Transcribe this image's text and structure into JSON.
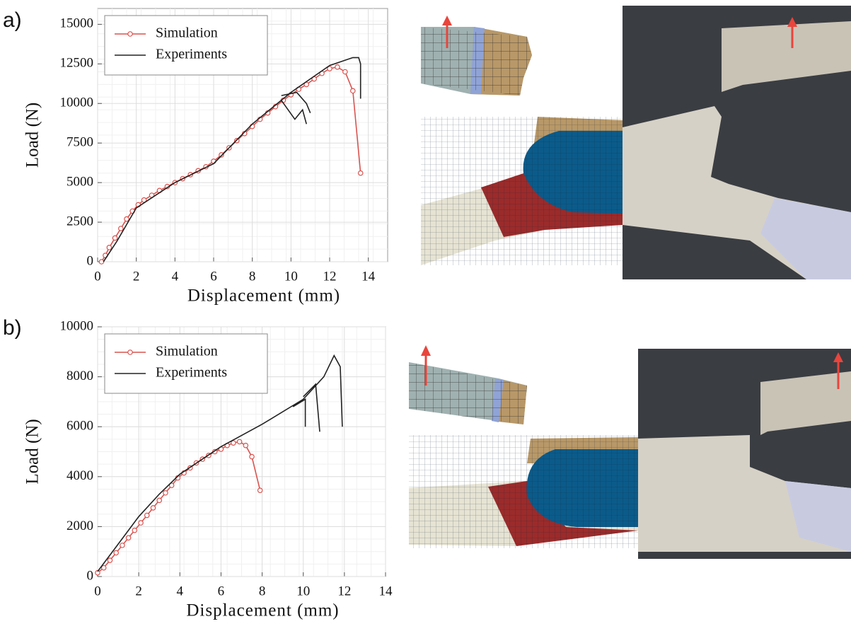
{
  "panel_labels": [
    "a)",
    "b)"
  ],
  "chart_data": [
    {
      "type": "line",
      "x_label": "Displacement (mm)",
      "y_label": "Load (N)",
      "xlim": [
        0,
        15
      ],
      "ylim": [
        0,
        16000
      ],
      "xticks": [
        0,
        2,
        4,
        6,
        8,
        10,
        12,
        14
      ],
      "yticks": [
        0,
        2500,
        5000,
        7500,
        10000,
        12500,
        15000
      ],
      "grid": true,
      "legend": "upper left",
      "series": [
        {
          "name": "Simulation",
          "color": "#d9534f",
          "markers": true,
          "x": [
            0.2,
            0.4,
            0.6,
            0.9,
            1.2,
            1.5,
            1.8,
            2.1,
            2.4,
            2.8,
            3.2,
            3.6,
            4,
            4.4,
            4.8,
            5.2,
            5.6,
            6,
            6.4,
            6.8,
            7.2,
            7.6,
            8,
            8.4,
            8.8,
            9.2,
            9.6,
            10,
            10.4,
            10.8,
            11.2,
            11.6,
            12,
            12.4,
            12.8,
            13.2,
            13.6
          ],
          "values": [
            0,
            400,
            900,
            1500,
            2100,
            2700,
            3200,
            3600,
            3900,
            4200,
            4500,
            4750,
            5000,
            5250,
            5500,
            5750,
            6000,
            6350,
            6750,
            7200,
            7650,
            8100,
            8550,
            9000,
            9400,
            9800,
            10200,
            10550,
            10900,
            11200,
            11550,
            11900,
            12200,
            12300,
            12000,
            10800,
            5600
          ]
        },
        {
          "name": "Experiments",
          "color": "#222222",
          "markers": false,
          "x": [
            0.3,
            1,
            2,
            4,
            6,
            8,
            10,
            12,
            13.2,
            13.5,
            13.6,
            13.6,
            null,
            9.5,
            10.3,
            10.8,
            11,
            null,
            9.5,
            10.2,
            10.6,
            10.8
          ],
          "values": [
            0,
            1300,
            3400,
            5000,
            6200,
            8700,
            10700,
            12400,
            12900,
            12900,
            12500,
            10300,
            null,
            10500,
            10700,
            10000,
            9400,
            null,
            10200,
            9000,
            9600,
            8700
          ]
        }
      ]
    },
    {
      "type": "line",
      "x_label": "Displacement (mm)",
      "y_label": "Load (N)",
      "xlim": [
        0,
        14
      ],
      "ylim": [
        0,
        10000
      ],
      "xticks": [
        0,
        2,
        4,
        6,
        8,
        10,
        12,
        14
      ],
      "yticks": [
        0,
        2000,
        4000,
        6000,
        8000,
        10000
      ],
      "grid": true,
      "legend": "upper left",
      "series": [
        {
          "name": "Simulation",
          "color": "#d9534f",
          "markers": true,
          "x": [
            0,
            0.3,
            0.6,
            0.9,
            1.2,
            1.5,
            1.8,
            2.1,
            2.4,
            2.7,
            3,
            3.3,
            3.6,
            3.9,
            4.2,
            4.5,
            4.8,
            5.1,
            5.4,
            5.7,
            6,
            6.3,
            6.6,
            6.9,
            7.2,
            7.5,
            7.9
          ],
          "values": [
            150,
            350,
            650,
            950,
            1250,
            1550,
            1850,
            2150,
            2450,
            2750,
            3050,
            3350,
            3650,
            3950,
            4150,
            4350,
            4550,
            4700,
            4850,
            5000,
            5100,
            5250,
            5350,
            5400,
            5250,
            4800,
            3450
          ]
        },
        {
          "name": "Experiments",
          "color": "#222222",
          "markers": false,
          "x": [
            0,
            1,
            2,
            3,
            4,
            6,
            8,
            10,
            11,
            11.5,
            11.8,
            11.9,
            null,
            9.5,
            10.1,
            10.1,
            null,
            10,
            10.6,
            10.8
          ],
          "values": [
            200,
            1300,
            2400,
            3300,
            4100,
            5200,
            6100,
            7100,
            8000,
            8850,
            8400,
            6000,
            null,
            6800,
            7100,
            6000,
            null,
            7200,
            7700,
            5800
          ]
        }
      ]
    }
  ]
}
